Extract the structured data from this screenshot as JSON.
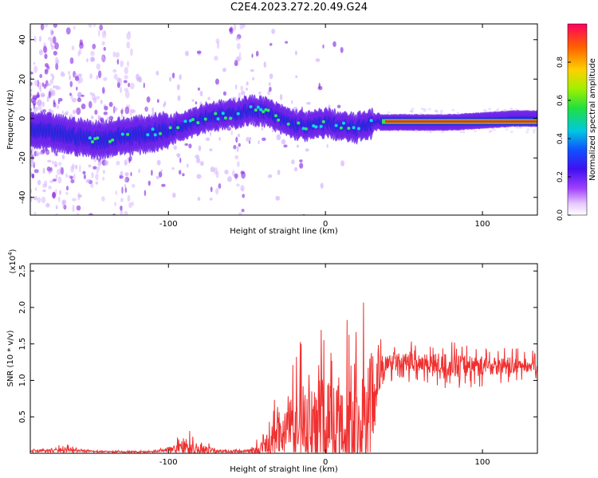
{
  "title": "C2E4.2023.272.20.49.G24",
  "chart_data": [
    {
      "type": "heatmap",
      "xlabel": "Height of straight line (km)",
      "ylabel": "Frequency (Hz)",
      "xlim": [
        -188,
        135
      ],
      "ylim": [
        -49,
        48
      ],
      "xticks": [
        -100,
        0,
        100
      ],
      "yticks": [
        -40,
        -20,
        0,
        20,
        40
      ],
      "colorbar": {
        "label": "Normalized spectral amplitude",
        "range": [
          0,
          1
        ],
        "ticks": [
          "0.0",
          "0.2",
          "0.4",
          "0.6",
          "0.8"
        ]
      },
      "ridge": {
        "x": [
          -185,
          -160,
          -145,
          -130,
          -115,
          -100,
          -90,
          -75,
          -60,
          -50,
          -40,
          -30,
          -20,
          -10,
          0,
          10,
          20,
          25,
          35,
          50,
          80,
          100,
          120,
          135
        ],
        "frequency": [
          -6,
          -9,
          -11,
          -9,
          -8,
          -6,
          -3,
          1,
          2,
          4,
          4,
          0,
          -3,
          -4,
          -2,
          -4,
          -5,
          -3,
          -2,
          -2,
          -2,
          -1,
          0,
          0
        ]
      }
    },
    {
      "type": "line",
      "xlabel": "Height of straight line (km)",
      "ylabel": "SNR (10 * v/v)",
      "yscale_label": "(x10",
      "yscale_exponent": "4",
      "xlim": [
        -188,
        135
      ],
      "ylim": [
        0,
        26000
      ],
      "xticks": [
        -100,
        0,
        100
      ],
      "yticks": [
        5000,
        10000,
        15000,
        20000,
        25000
      ],
      "ytick_labels": [
        "0.5",
        "1.0",
        "1.5",
        "2.0",
        "2.5"
      ],
      "series": [
        {
          "color": "#f03030",
          "envelope": {
            "x": [
              -188,
              -165,
              -150,
              -130,
              -110,
              -100,
              -90,
              -80,
              -70,
              -60,
              -50,
              -40,
              -35,
              -30,
              -20,
              -10,
              0,
              10,
              20,
              25,
              28,
              33,
              40,
              60,
              80,
              100,
              120,
              135
            ],
            "baseline": [
              300,
              500,
              300,
              200,
              200,
              500,
              1000,
              700,
              300,
              250,
              250,
              500,
              1500,
              3000,
              4000,
              5000,
              5000,
              4500,
              3000,
              3000,
              6000,
              10000,
              12500,
              12500,
              12000,
              12000,
              12000,
              12000
            ],
            "amplitude": [
              200,
              900,
              200,
              200,
              200,
              700,
              2600,
              2000,
              400,
              300,
              300,
              2500,
              4000,
              7000,
              9000,
              14000,
              16000,
              14000,
              16000,
              20000,
              19000,
              8000,
              2500,
              3000,
              3500,
              3000,
              2500,
              2000
            ]
          }
        }
      ]
    }
  ]
}
